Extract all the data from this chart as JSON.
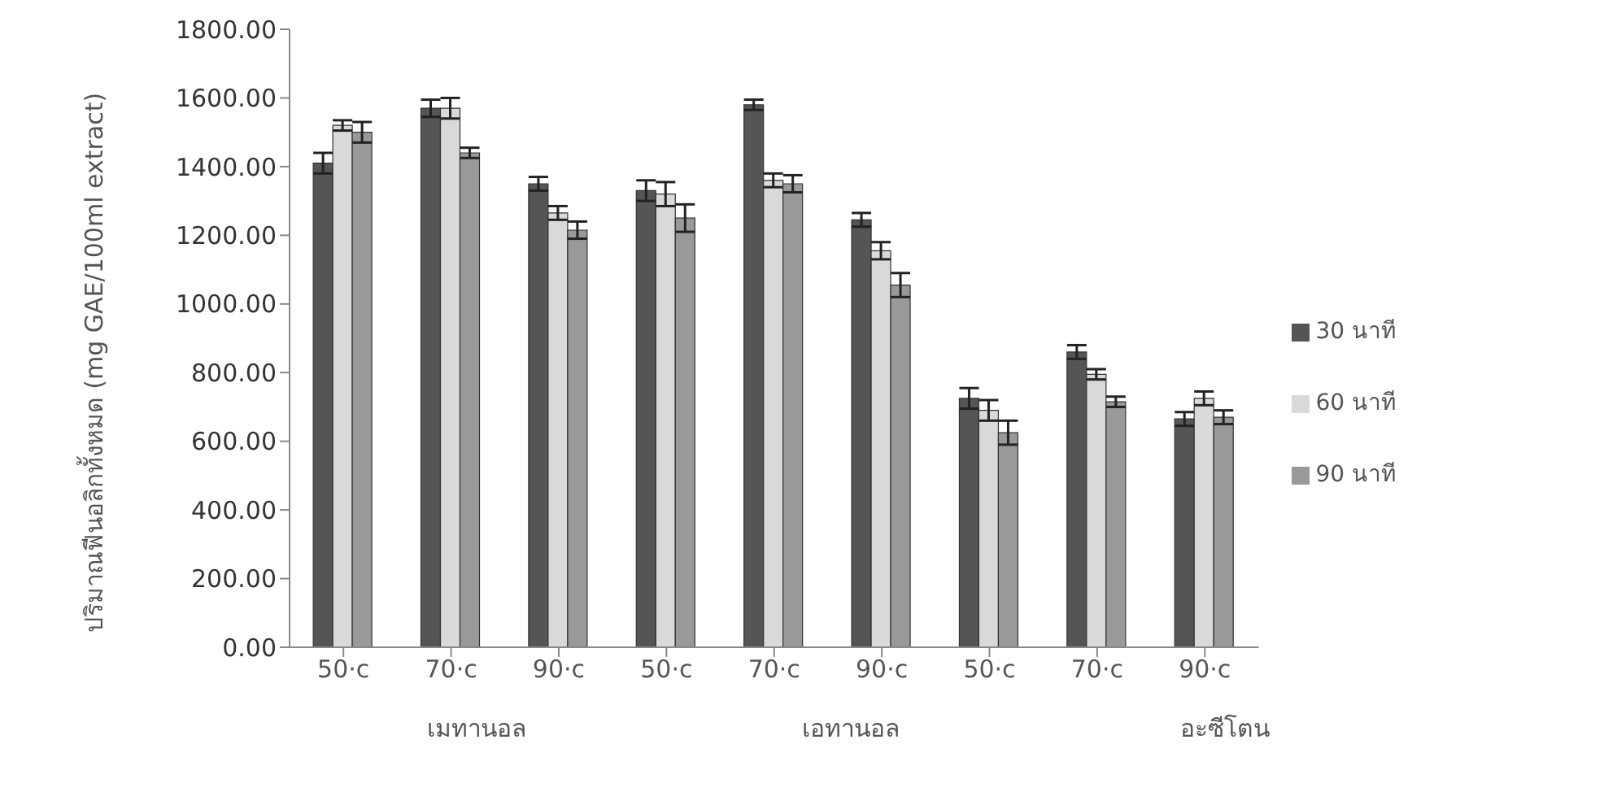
{
  "chart_data": {
    "type": "bar",
    "ylabel": "ปริมาณฟีนอลิกทั้งหมด (mg GAE/100ml extract)",
    "categories": [
      "50·c",
      "70·c",
      "90·c",
      "50·c",
      "70·c",
      "90·c",
      "50·c",
      "70·c",
      "90·c"
    ],
    "series": [
      {
        "name": "30 นาที",
        "color": "#555555",
        "values": [
          1410,
          1570,
          1350,
          1330,
          1580,
          1245,
          725,
          860,
          665
        ],
        "errors": [
          30,
          25,
          20,
          30,
          15,
          20,
          30,
          20,
          20
        ]
      },
      {
        "name": "60 นาที",
        "color": "#d9d9d9",
        "values": [
          1520,
          1570,
          1265,
          1320,
          1360,
          1155,
          690,
          795,
          725
        ],
        "errors": [
          15,
          30,
          20,
          35,
          20,
          25,
          30,
          15,
          20
        ]
      },
      {
        "name": "90 นาที",
        "color": "#999999",
        "values": [
          1500,
          1440,
          1215,
          1250,
          1350,
          1055,
          625,
          715,
          670
        ],
        "errors": [
          30,
          15,
          25,
          40,
          25,
          35,
          35,
          15,
          20
        ]
      }
    ],
    "ylim": [
      0,
      1800
    ],
    "yticks": [
      {
        "value": 0,
        "label": "0.00"
      },
      {
        "value": 200,
        "label": "200.00"
      },
      {
        "value": 400,
        "label": "400.00"
      },
      {
        "value": 600,
        "label": "600.00"
      },
      {
        "value": 800,
        "label": "800.00"
      },
      {
        "value": 1000,
        "label": "1000.00"
      },
      {
        "value": 1200,
        "label": "1200.00"
      },
      {
        "value": 1400,
        "label": "1400.00"
      },
      {
        "value": 1600,
        "label": "1600.00"
      },
      {
        "value": 1800,
        "label": "1800.00"
      }
    ],
    "annotations": [
      "เมทานอล",
      "เอทานอล",
      "อะซีโตน"
    ],
    "legend": "right",
    "grid": false
  }
}
